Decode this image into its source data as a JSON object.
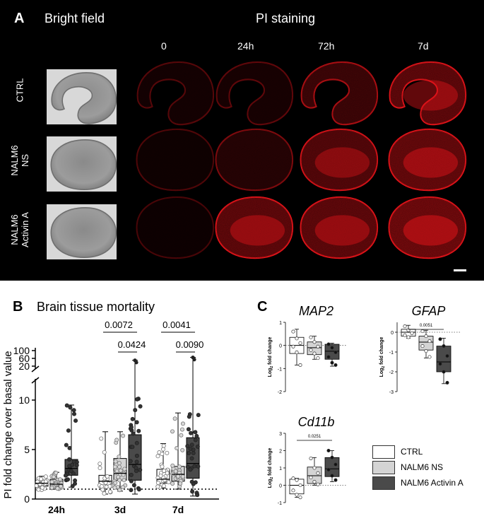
{
  "panelA": {
    "letter": "A",
    "bright_field": "Bright field",
    "pi_staining": "PI staining",
    "timepoints": [
      "0",
      "24h",
      "72h",
      "7d"
    ],
    "rows": [
      {
        "line1": "CTRL",
        "line2": ""
      },
      {
        "line1": "NALM6",
        "line2": "NS"
      },
      {
        "line1": "NALM6",
        "line2": "Activin A"
      }
    ],
    "pi_intensity": [
      [
        0.18,
        0.22,
        0.55,
        0.85
      ],
      [
        0.15,
        0.35,
        0.75,
        0.9
      ],
      [
        0.12,
        0.85,
        0.85,
        1.0
      ]
    ],
    "colors": {
      "pi": "#e8141a",
      "background": "#000000"
    }
  },
  "panelB": {
    "letter": "B",
    "title": "Brain tissue mortality",
    "chart_data": {
      "type": "box",
      "ylabel": "PI fold change over basal value",
      "categories": [
        "24h",
        "3d",
        "7d"
      ],
      "y_ticks_lower": [
        "0",
        "5",
        "10"
      ],
      "y_ticks_upper": [
        "20",
        "60",
        "100"
      ],
      "y_range_lower": [
        0,
        12
      ],
      "y_range_upper": [
        20,
        100
      ],
      "reference_line": 1,
      "series": [
        {
          "group": "CTRL",
          "fill": "#ffffff",
          "boxes": [
            {
              "min": 0.9,
              "q1": 1.3,
              "median": 1.6,
              "q3": 1.9,
              "max": 2.3
            },
            {
              "min": 0.5,
              "q1": 1.2,
              "median": 1.8,
              "q3": 2.4,
              "max": 6.8
            },
            {
              "min": 1.1,
              "q1": 1.6,
              "median": 2.0,
              "q3": 3.0,
              "max": 5.6
            }
          ]
        },
        {
          "group": "NALM6 NS",
          "fill": "#d4d4d4",
          "boxes": [
            {
              "min": 1.0,
              "q1": 1.3,
              "median": 1.5,
              "q3": 2.0,
              "max": 2.7
            },
            {
              "min": 0.8,
              "q1": 1.9,
              "median": 2.6,
              "q3": 4.1,
              "max": 6.8
            },
            {
              "min": 1.0,
              "q1": 1.8,
              "median": 2.5,
              "q3": 3.3,
              "max": 8.7
            }
          ]
        },
        {
          "group": "NALM6 Activin A",
          "fill": "#4a4a4a",
          "boxes": [
            {
              "min": 1.2,
              "q1": 2.4,
              "median": 3.1,
              "q3": 4.0,
              "max": 9.5
            },
            {
              "min": 0.5,
              "q1": 1.9,
              "median": 3.5,
              "q3": 6.5,
              "max": 50
            },
            {
              "min": 0.3,
              "q1": 2.1,
              "median": 3.6,
              "q3": 6.2,
              "max": 65
            }
          ]
        }
      ],
      "pvalues": [
        {
          "text": "0.0072",
          "from_cat": 1,
          "from_group": 0,
          "to_group": 2
        },
        {
          "text": "0.0424",
          "from_cat": 1,
          "from_group": 1,
          "to_group": 2
        },
        {
          "text": "0.0041",
          "from_cat": 2,
          "from_group": 0,
          "to_group": 2
        },
        {
          "text": "0.0090",
          "from_cat": 2,
          "from_group": 1,
          "to_group": 2
        }
      ]
    }
  },
  "panelC": {
    "letter": "C",
    "ylabel_prefix": "Log",
    "ylabel_sub": "2",
    "ylabel_suffix": " fold change",
    "legend": [
      {
        "label": "CTRL",
        "fill": "#ffffff"
      },
      {
        "label": "NALM6 NS",
        "fill": "#d4d4d4"
      },
      {
        "label": "NALM6 Activin A",
        "fill": "#4a4a4a"
      }
    ],
    "charts": [
      {
        "title": "MAP2",
        "type": "box",
        "y_ticks": [
          "1",
          "0",
          "-1",
          "-2"
        ],
        "ylim": [
          -2,
          1
        ],
        "pvalue": "",
        "boxes": [
          {
            "min": -0.85,
            "q1": -0.35,
            "median": 0.0,
            "q3": 0.35,
            "max": 0.7,
            "points": [
              0.6,
              0.3,
              0.1,
              -0.05,
              -0.3,
              -0.85
            ]
          },
          {
            "min": -0.6,
            "q1": -0.4,
            "median": -0.1,
            "q3": 0.15,
            "max": 0.4,
            "points": [
              0.35,
              0.15,
              -0.05,
              -0.2,
              -0.35,
              -0.55
            ]
          },
          {
            "min": -0.9,
            "q1": -0.6,
            "median": -0.25,
            "q3": 0.05,
            "max": 0.1,
            "points": [
              0.05,
              -0.1,
              -0.3,
              -0.5,
              -0.75,
              -0.85
            ]
          }
        ]
      },
      {
        "title": "GFAP",
        "type": "box",
        "y_ticks": [
          "0",
          "-1",
          "-2",
          "-3"
        ],
        "ylim": [
          -3,
          0.5
        ],
        "pvalue": "0.0051",
        "boxes": [
          {
            "min": -0.3,
            "q1": -0.2,
            "median": 0.0,
            "q3": 0.15,
            "max": 0.35,
            "points": [
              0.3,
              0.1,
              -0.05,
              -0.15,
              -0.25
            ]
          },
          {
            "min": -1.3,
            "q1": -0.9,
            "median": -0.5,
            "q3": -0.2,
            "max": 0.1,
            "points": [
              0.05,
              -0.2,
              -0.45,
              -0.7,
              -0.95,
              -1.25
            ]
          },
          {
            "min": -2.6,
            "q1": -2.0,
            "median": -1.5,
            "q3": -0.7,
            "max": -0.3,
            "points": [
              -0.35,
              -0.7,
              -1.2,
              -1.6,
              -2.0,
              -2.55
            ]
          }
        ]
      },
      {
        "title": "Cd11b",
        "type": "box",
        "y_ticks": [
          "3",
          "2",
          "1",
          "0",
          "-1"
        ],
        "ylim": [
          -1,
          3
        ],
        "pvalue": "0.0251",
        "boxes": [
          {
            "min": -0.7,
            "q1": -0.5,
            "median": 0.0,
            "q3": 0.35,
            "max": 0.4,
            "points": [
              0.4,
              0.3,
              0.0,
              -0.3,
              -0.55,
              -0.7
            ]
          },
          {
            "min": 0.0,
            "q1": 0.1,
            "median": 0.55,
            "q3": 1.05,
            "max": 1.6,
            "points": [
              1.55,
              1.0,
              0.7,
              0.45,
              0.2,
              0.05
            ]
          },
          {
            "min": 0.2,
            "q1": 0.5,
            "median": 0.95,
            "q3": 1.6,
            "max": 2.0,
            "points": [
              2.0,
              1.6,
              1.2,
              0.9,
              0.55,
              0.3
            ]
          }
        ]
      }
    ]
  }
}
